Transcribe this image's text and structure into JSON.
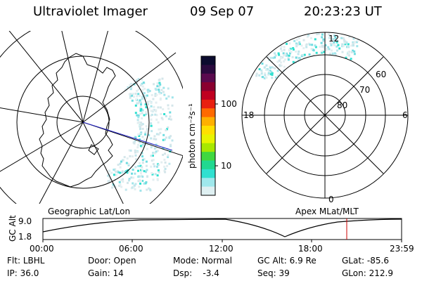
{
  "header": {
    "title": "Ultraviolet Imager",
    "date": "09 Sep 07",
    "time": "20:23:23 UT"
  },
  "colorbar": {
    "unit_label": "photon cm⁻²s⁻¹",
    "tick_labels": [
      "100",
      "10"
    ],
    "colors": [
      "#0b0b2e",
      "#2a0a3e",
      "#5a0a4e",
      "#8a0030",
      "#c00020",
      "#e82010",
      "#ff6a00",
      "#ffb000",
      "#ffe000",
      "#e8f400",
      "#a8e800",
      "#40d840",
      "#20d890",
      "#30e0d0",
      "#9fe8ec",
      "#dff0f2"
    ]
  },
  "maps": {
    "geographic_label": "Geographic Lat/Lon",
    "apex_label": "Apex MLat/MLT",
    "apex_lat_labels": [
      "80",
      "70",
      "60"
    ],
    "apex_mlt_labels": [
      "12",
      "18",
      "6",
      "0"
    ]
  },
  "altitude_panel": {
    "axis_label": "GC Alt",
    "y_ticks": [
      "9.0",
      "1.8"
    ],
    "x_ticks": [
      "00:00",
      "06:00",
      "12:00",
      "18:00",
      "23:59"
    ],
    "marker_color": "#cc0000"
  },
  "info": {
    "flt_label": "Flt:",
    "flt_value": "LBHL",
    "ip_label": "IP:",
    "ip_value": "36.0",
    "door_label": "Door:",
    "door_value": "Open",
    "gain_label": "Gain:",
    "gain_value": "14",
    "mode_label": "Mode:",
    "mode_value": "Normal",
    "dsp_label": "Dsp:",
    "dsp_value": "-3.4",
    "gcalt_label": "GC Alt:",
    "gcalt_value": "6.9 Re",
    "seq_label": "Seq:",
    "seq_value": "39",
    "glat_label": "GLat:",
    "glat_value": "-85.6",
    "glon_label": "GLon:",
    "glon_value": "212.9"
  }
}
